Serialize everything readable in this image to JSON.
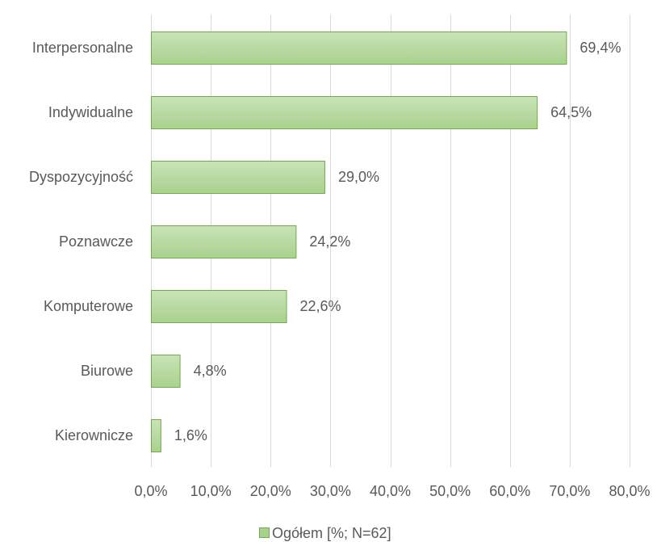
{
  "chart_data": {
    "type": "bar",
    "orientation": "horizontal",
    "categories": [
      "Interpersonalne",
      "Indywidualne",
      "Dyspozycyjność",
      "Poznawcze",
      "Komputerowe",
      "Biurowe",
      "Kierownicze"
    ],
    "series": [
      {
        "name": "Ogółem [%; N=62]",
        "values": [
          69.4,
          64.5,
          29.0,
          24.2,
          22.6,
          4.8,
          1.6
        ],
        "data_labels": [
          "69,4%",
          "64,5%",
          "29,0%",
          "24,2%",
          "22,6%",
          "4,8%",
          "1,6%"
        ]
      }
    ],
    "x_ticks": [
      "0,0%",
      "10,0%",
      "20,0%",
      "30,0%",
      "40,0%",
      "50,0%",
      "60,0%",
      "70,0%",
      "80,0%"
    ],
    "xlim": [
      0,
      80
    ],
    "grid": true,
    "legend_position": "bottom",
    "colors": {
      "bar_fill": "#a9d18e",
      "bar_fill_light": "#c9e3b8",
      "bar_stroke": "#70ad47",
      "grid": "#d9d9d9",
      "text": "#595959"
    }
  }
}
